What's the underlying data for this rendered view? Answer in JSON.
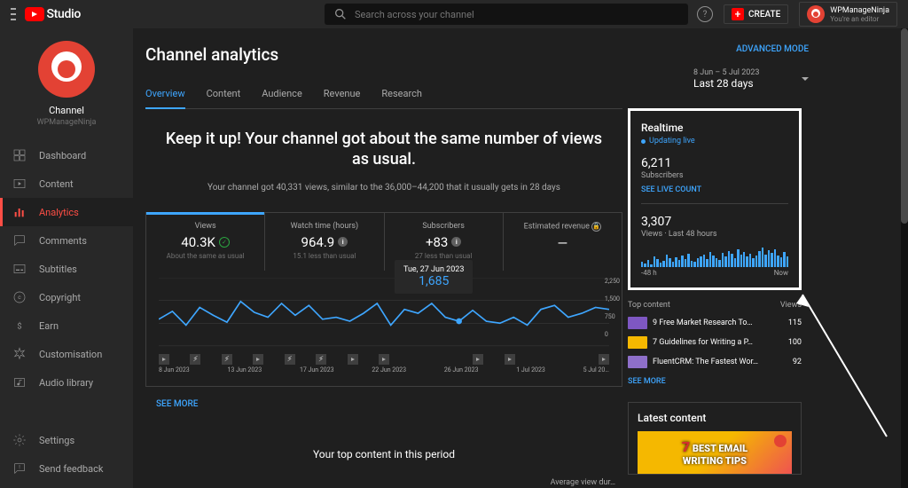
{
  "header": {
    "brand": "Studio",
    "search_placeholder": "Search across your channel",
    "create_label": "CREATE",
    "account_name": "WPManageNinja",
    "account_role": "You're an editor"
  },
  "sidebar": {
    "channel_label": "Channel",
    "channel_name": "WPManageNinja",
    "items": [
      {
        "label": "Dashboard"
      },
      {
        "label": "Content"
      },
      {
        "label": "Analytics"
      },
      {
        "label": "Comments"
      },
      {
        "label": "Subtitles"
      },
      {
        "label": "Copyright"
      },
      {
        "label": "Earn"
      },
      {
        "label": "Customisation"
      },
      {
        "label": "Audio library"
      }
    ],
    "bottom": [
      {
        "label": "Settings"
      },
      {
        "label": "Send feedback"
      }
    ]
  },
  "page": {
    "title": "Channel analytics",
    "advanced": "ADVANCED MODE",
    "date_small": "8 Jun – 5 Jul 2023",
    "date_preset": "Last 28 days",
    "tabs": [
      "Overview",
      "Content",
      "Audience",
      "Revenue",
      "Research"
    ],
    "active_tab": 0
  },
  "summary": {
    "headline_1": "Keep it up! Your channel got about the same number of views",
    "headline_2": "as usual.",
    "sub": "Your channel got 40,331 views, similar to the 36,000–44,200 that it usually gets in 28 days"
  },
  "metrics": [
    {
      "label": "Views",
      "value": "40.3K",
      "sub": "About the same as usual",
      "icon": "check"
    },
    {
      "label": "Watch time (hours)",
      "value": "964.9",
      "sub": "15.1 less than usual",
      "icon": "info"
    },
    {
      "label": "Subscribers",
      "value": "+83",
      "sub": "27 less than usual",
      "icon": "info"
    },
    {
      "label": "Estimated revenue",
      "value": "—",
      "sub": "",
      "icon": "lock"
    }
  ],
  "chart": {
    "tooltip_date": "Tue, 27 Jun 2023",
    "tooltip_value": "1,685",
    "y_ticks": [
      "2,250",
      "1,500",
      "750",
      "0"
    ],
    "x_labels": [
      "8 Jun 2023",
      "13 Jun 2023",
      "17 Jun 2023",
      "22 Jun 2023",
      "26 Jun 2023",
      "1 Jul 2023",
      "5 Jul 20…"
    ],
    "markers": [
      "play",
      "short",
      "short",
      "play",
      "short",
      "short",
      "play",
      "play",
      "",
      "",
      "play",
      "play",
      "",
      "",
      "play"
    ],
    "line_path": "M0,42 L14,34 L28,48 L42,30 L56,38 L70,45 L84,24 L98,35 L112,40 L126,26 L140,38 L154,28 L168,42 L182,40 L196,44 L210,36 L224,26 L238,48 L252,32 L266,36 L280,26 L294,40 L308,44 L322,33 L336,44 L350,46 L364,40 L378,48 L392,32 L406,28 L420,40 L434,36 L448,30 L462,32",
    "line_color": "#3ea6ff",
    "see_more": "SEE MORE"
  },
  "top_period": {
    "title": "Your top content in this period",
    "col": "Average view dur…"
  },
  "realtime": {
    "title": "Realtime",
    "live": "Updating live",
    "subs_val": "6,211",
    "subs_lab": "Subscribers",
    "live_link": "SEE LIVE COUNT",
    "views_val": "3,307",
    "views_lab": "Views · Last 48 hours",
    "mini_bars": [
      6,
      4,
      8,
      3,
      12,
      9,
      5,
      7,
      14,
      10,
      6,
      11,
      8,
      13,
      9,
      15,
      7,
      6,
      10,
      12,
      14,
      9,
      17,
      13,
      10,
      8,
      16,
      12,
      18,
      15,
      10,
      20,
      14,
      17,
      12,
      15,
      10,
      13,
      18,
      22,
      14,
      19,
      16,
      20,
      13,
      11,
      17,
      12
    ],
    "mini_left": "-48 h",
    "mini_right": "Now",
    "top_hdr_l": "Top content",
    "top_hdr_r": "Views",
    "items": [
      {
        "title": "9 Free Market Research To…",
        "views": "115",
        "color": "#7e57c2"
      },
      {
        "title": "7 Guidelines for Writing a P…",
        "views": "100",
        "color": "#f5b800"
      },
      {
        "title": "FluentCRM: The Fastest Wor…",
        "views": "92",
        "color": "#8e6fc9"
      }
    ],
    "see_more": "SEE MORE"
  },
  "latest": {
    "title": "Latest content",
    "thumb_line1": "BEST EMAIL",
    "thumb_line2": "WRITING TIPS",
    "thumb_badge": "7"
  }
}
